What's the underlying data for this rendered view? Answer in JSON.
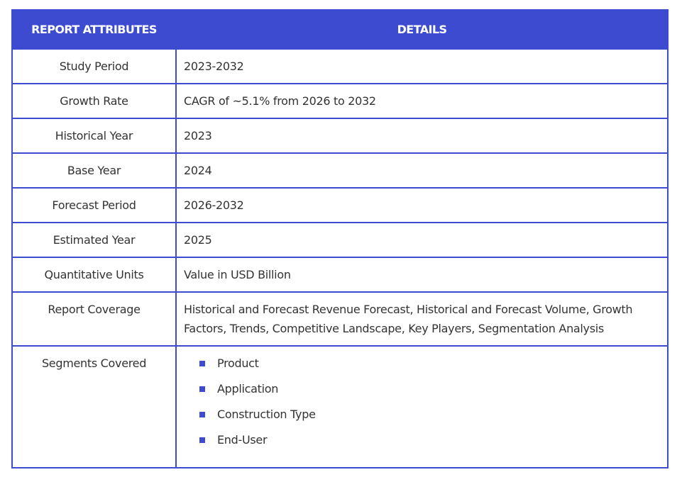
{
  "table": {
    "header": [
      "REPORT ATTRIBUTES",
      "DETAILS"
    ],
    "rows": [
      [
        "Study Period",
        "2023-2032"
      ],
      [
        "Growth Rate",
        "CAGR of ~5.1% from 2026 to 2032"
      ],
      [
        "Historical Year",
        "2023"
      ],
      [
        "Base Year",
        "2024"
      ],
      [
        "Forecast Period",
        "2026-2032"
      ],
      [
        "Estimated Year",
        "2025"
      ],
      [
        "Quantitative Units",
        "Value in USD Billion"
      ],
      [
        "Report Coverage",
        "Historical and Forecast Revenue Forecast, Historical and Forecast Volume, Growth Factors, Trends, Competitive Landscape, Key Players, Segmentation Analysis"
      ],
      [
        "Segments Covered",
        [
          "Product",
          "Application",
          "Construction Type",
          "End-User"
        ]
      ]
    ]
  }
}
